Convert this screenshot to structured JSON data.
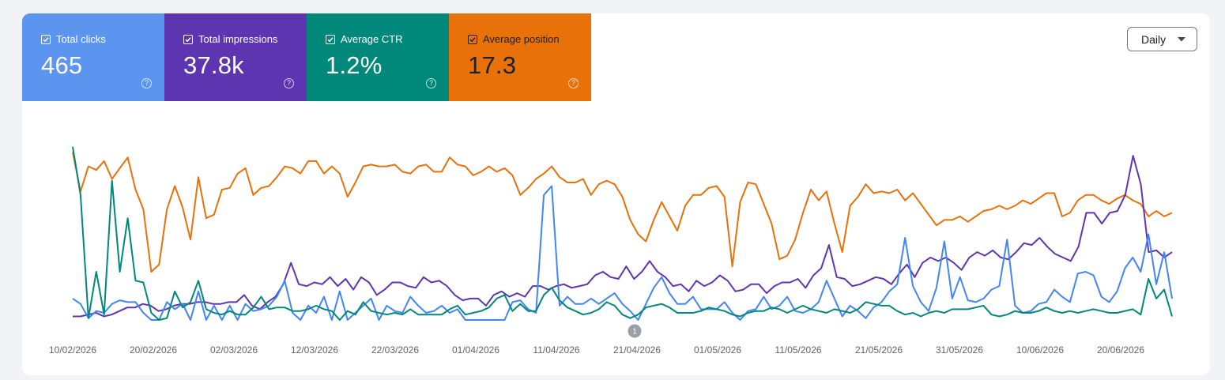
{
  "metrics": {
    "clicks": {
      "label": "Total clicks",
      "value": "465",
      "color": "#5b95f0"
    },
    "impressions": {
      "label": "Total impressions",
      "value": "37.8k",
      "color": "#5e35b1"
    },
    "ctr": {
      "label": "Average CTR",
      "value": "1.2%",
      "color": "#00897b"
    },
    "position": {
      "label": "Average position",
      "value": "17.3",
      "color": "#e8710a"
    },
    "help_glyph": "?"
  },
  "granularity": {
    "selected": "Daily"
  },
  "annotation": {
    "label": "1",
    "date": "21/04/2026"
  },
  "chart_data": {
    "type": "line",
    "start_date": "10/02/2026",
    "x_tick_labels": [
      "10/02/2026",
      "20/02/2026",
      "02/03/2026",
      "12/03/2026",
      "22/03/2026",
      "01/04/2026",
      "11/04/2026",
      "21/04/2026",
      "01/05/2026",
      "11/05/2026",
      "21/05/2026",
      "31/05/2026",
      "10/06/2026",
      "20/06/2026"
    ],
    "grid": false,
    "legend": "metric cards at top",
    "y_scale": "each series independently normalized (relative 0–1)",
    "series": [
      {
        "name": "Average position",
        "color": "#e8710a",
        "values": [
          0.94,
          0.72,
          0.86,
          0.84,
          0.89,
          0.79,
          0.85,
          0.91,
          0.73,
          0.62,
          0.27,
          0.31,
          0.62,
          0.75,
          0.63,
          0.45,
          0.8,
          0.57,
          0.59,
          0.73,
          0.74,
          0.82,
          0.85,
          0.7,
          0.74,
          0.75,
          0.8,
          0.86,
          0.85,
          0.82,
          0.89,
          0.89,
          0.82,
          0.86,
          0.82,
          0.69,
          0.77,
          0.86,
          0.87,
          0.86,
          0.86,
          0.87,
          0.83,
          0.82,
          0.86,
          0.87,
          0.83,
          0.83,
          0.91,
          0.87,
          0.86,
          0.81,
          0.83,
          0.86,
          0.83,
          0.85,
          0.81,
          0.7,
          0.74,
          0.79,
          0.82,
          0.86,
          0.8,
          0.77,
          0.77,
          0.79,
          0.7,
          0.76,
          0.78,
          0.76,
          0.69,
          0.56,
          0.48,
          0.44,
          0.56,
          0.66,
          0.58,
          0.5,
          0.64,
          0.7,
          0.7,
          0.74,
          0.75,
          0.69,
          0.3,
          0.66,
          0.77,
          0.76,
          0.65,
          0.54,
          0.34,
          0.36,
          0.45,
          0.6,
          0.73,
          0.67,
          0.72,
          0.54,
          0.38,
          0.64,
          0.69,
          0.76,
          0.71,
          0.72,
          0.71,
          0.73,
          0.67,
          0.71,
          0.65,
          0.59,
          0.53,
          0.56,
          0.56,
          0.58,
          0.55,
          0.58,
          0.61,
          0.62,
          0.64,
          0.62,
          0.64,
          0.67,
          0.65,
          0.68,
          0.71,
          0.71,
          0.58,
          0.6,
          0.67,
          0.7,
          0.7,
          0.67,
          0.65,
          0.68,
          0.7,
          0.67,
          0.65,
          0.58,
          0.61,
          0.58,
          0.6
        ]
      },
      {
        "name": "Total impressions",
        "color": "#5e35b1",
        "values": [
          0.02,
          0.02,
          0.03,
          0.04,
          0.02,
          0.03,
          0.05,
          0.07,
          0.07,
          0.09,
          0.08,
          0.05,
          0.06,
          0.08,
          0.09,
          0.09,
          0.1,
          0.1,
          0.09,
          0.09,
          0.1,
          0.1,
          0.14,
          0.08,
          0.06,
          0.1,
          0.13,
          0.2,
          0.32,
          0.2,
          0.19,
          0.21,
          0.2,
          0.24,
          0.19,
          0.23,
          0.17,
          0.24,
          0.21,
          0.14,
          0.17,
          0.21,
          0.21,
          0.19,
          0.18,
          0.24,
          0.21,
          0.22,
          0.19,
          0.14,
          0.11,
          0.12,
          0.12,
          0.08,
          0.14,
          0.16,
          0.13,
          0.15,
          0.13,
          0.19,
          0.19,
          0.17,
          0.19,
          0.2,
          0.18,
          0.19,
          0.2,
          0.25,
          0.27,
          0.24,
          0.23,
          0.3,
          0.23,
          0.27,
          0.33,
          0.27,
          0.24,
          0.19,
          0.2,
          0.16,
          0.22,
          0.19,
          0.21,
          0.25,
          0.22,
          0.16,
          0.17,
          0.2,
          0.2,
          0.15,
          0.19,
          0.21,
          0.21,
          0.23,
          0.18,
          0.25,
          0.29,
          0.42,
          0.24,
          0.23,
          0.19,
          0.2,
          0.22,
          0.24,
          0.23,
          0.2,
          0.26,
          0.31,
          0.24,
          0.32,
          0.35,
          0.33,
          0.35,
          0.32,
          0.28,
          0.35,
          0.38,
          0.36,
          0.39,
          0.35,
          0.34,
          0.38,
          0.43,
          0.42,
          0.46,
          0.41,
          0.37,
          0.35,
          0.33,
          0.41,
          0.6,
          0.6,
          0.54,
          0.6,
          0.61,
          0.7,
          0.92,
          0.76,
          0.38,
          0.39,
          0.35,
          0.38
        ]
      },
      {
        "name": "Total clicks",
        "color": "#4285f4",
        "values": [
          0.12,
          0.09,
          0.01,
          0.05,
          0.04,
          0.09,
          0.11,
          0.1,
          0.1,
          0.04,
          0.0,
          0.0,
          0.1,
          0.06,
          0.09,
          0.0,
          0.16,
          0.0,
          0.08,
          0.0,
          0.08,
          0.0,
          0.09,
          0.05,
          0.06,
          0.08,
          0.13,
          0.22,
          0.04,
          0.0,
          0.08,
          0.04,
          0.13,
          0.0,
          0.16,
          0.0,
          0.04,
          0.08,
          0.12,
          0.0,
          0.08,
          0.05,
          0.04,
          0.13,
          0.08,
          0.04,
          0.05,
          0.08,
          0.04,
          0.06,
          0.0,
          0.0,
          0.0,
          0.0,
          0.0,
          0.0,
          0.1,
          0.11,
          0.06,
          0.04,
          0.7,
          0.75,
          0.08,
          0.13,
          0.09,
          0.09,
          0.12,
          0.09,
          0.12,
          0.15,
          0.09,
          0.05,
          0.0,
          0.09,
          0.18,
          0.24,
          0.15,
          0.09,
          0.09,
          0.13,
          0.06,
          0.06,
          0.06,
          0.1,
          0.04,
          0.0,
          0.05,
          0.06,
          0.13,
          0.06,
          0.08,
          0.13,
          0.05,
          0.04,
          0.06,
          0.1,
          0.22,
          0.12,
          0.02,
          0.08,
          0.05,
          0.01,
          0.07,
          0.1,
          0.16,
          0.2,
          0.46,
          0.19,
          0.1,
          0.05,
          0.18,
          0.44,
          0.12,
          0.24,
          0.11,
          0.1,
          0.12,
          0.17,
          0.19,
          0.45,
          0.08,
          0.04,
          0.05,
          0.09,
          0.1,
          0.17,
          0.13,
          0.1,
          0.26,
          0.27,
          0.25,
          0.13,
          0.1,
          0.16,
          0.29,
          0.35,
          0.27,
          0.48,
          0.2,
          0.38,
          0.12
        ]
      },
      {
        "name": "Average CTR",
        "color": "#00897b",
        "values": [
          0.97,
          0.7,
          0.01,
          0.27,
          0.03,
          0.78,
          0.27,
          0.57,
          0.22,
          0.21,
          0.04,
          0.0,
          0.01,
          0.16,
          0.07,
          0.1,
          0.22,
          0.06,
          0.04,
          0.03,
          0.05,
          0.03,
          0.03,
          0.07,
          0.13,
          0.06,
          0.07,
          0.07,
          0.05,
          0.05,
          0.06,
          0.08,
          0.06,
          0.05,
          0.0,
          0.05,
          0.03,
          0.1,
          0.05,
          0.04,
          0.03,
          0.04,
          0.03,
          0.06,
          0.03,
          0.03,
          0.03,
          0.03,
          0.06,
          0.08,
          0.03,
          0.04,
          0.05,
          0.07,
          0.12,
          0.14,
          0.05,
          0.09,
          0.05,
          0.05,
          0.14,
          0.18,
          0.11,
          0.07,
          0.05,
          0.03,
          0.04,
          0.06,
          0.1,
          0.08,
          0.03,
          0.01,
          0.03,
          0.07,
          0.08,
          0.09,
          0.07,
          0.04,
          0.04,
          0.04,
          0.05,
          0.07,
          0.06,
          0.05,
          0.03,
          0.02,
          0.04,
          0.05,
          0.05,
          0.07,
          0.06,
          0.04,
          0.06,
          0.08,
          0.06,
          0.05,
          0.04,
          0.06,
          0.05,
          0.04,
          0.06,
          0.1,
          0.09,
          0.08,
          0.08,
          0.05,
          0.03,
          0.04,
          0.02,
          0.04,
          0.05,
          0.04,
          0.06,
          0.06,
          0.06,
          0.07,
          0.08,
          0.03,
          0.02,
          0.03,
          0.05,
          0.04,
          0.04,
          0.05,
          0.07,
          0.05,
          0.04,
          0.05,
          0.04,
          0.05,
          0.06,
          0.05,
          0.04,
          0.04,
          0.05,
          0.06,
          0.03,
          0.23,
          0.12,
          0.17,
          0.02
        ]
      }
    ]
  }
}
